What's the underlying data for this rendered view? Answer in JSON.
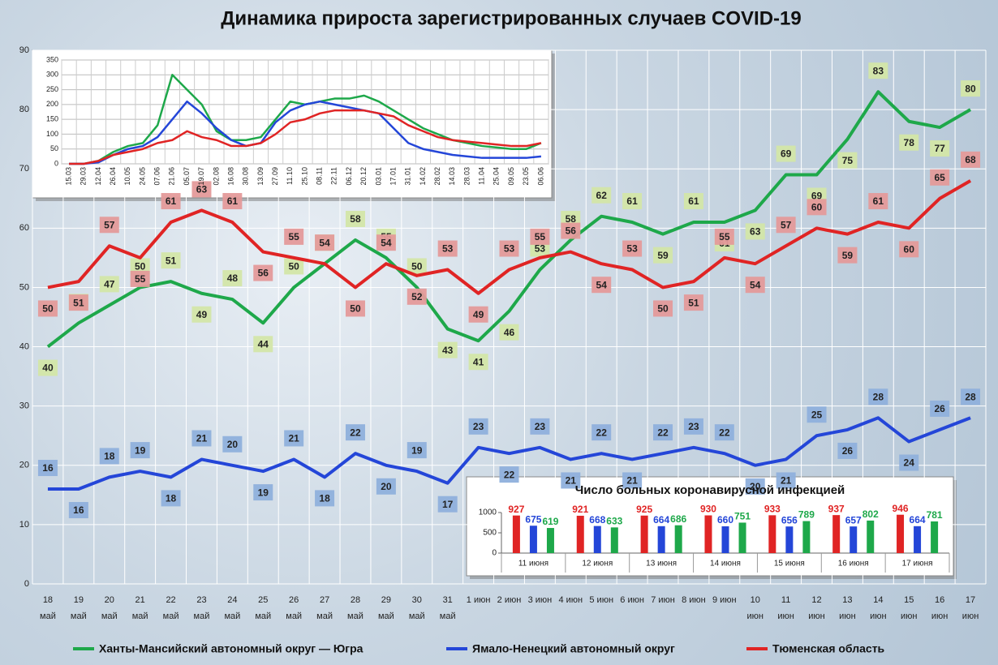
{
  "chart_data": [
    {
      "type": "line",
      "title": "Динамика прироста зарегистрированных случаев COVID-19",
      "categories": [
        "18 май",
        "19 май",
        "20 май",
        "21 май",
        "22 май",
        "23 май",
        "24 май",
        "25 май",
        "26 май",
        "27 май",
        "28 май",
        "29 май",
        "30 май",
        "31 май",
        "1 июн",
        "2 июн",
        "3 июн",
        "4 июн",
        "5 июн",
        "6 июн",
        "7 июн",
        "8 июн",
        "9 июн",
        "10 июн",
        "11 июн",
        "12 июн",
        "13 июн",
        "14 июн",
        "15 июн",
        "16 июн",
        "17 июн"
      ],
      "series": [
        {
          "name": "Ханты-Мансийский автономный округ — Югра",
          "color": "#1ea84a",
          "label_color": "#d3e6a8",
          "values": [
            40,
            44,
            47,
            50,
            51,
            49,
            48,
            44,
            50,
            54,
            58,
            55,
            50,
            43,
            41,
            46,
            53,
            58,
            62,
            61,
            59,
            61,
            61,
            63,
            69,
            69,
            75,
            83,
            78,
            77,
            80
          ]
        },
        {
          "name": "Ямало-Ненецкий автономный округ",
          "color": "#2446d8",
          "label_color": "#8fb0dc",
          "values": [
            16,
            16,
            18,
            19,
            18,
            21,
            20,
            19,
            21,
            18,
            22,
            20,
            19,
            17,
            23,
            22,
            23,
            21,
            22,
            21,
            22,
            23,
            22,
            20,
            21,
            25,
            26,
            28,
            24,
            26,
            28
          ]
        },
        {
          "name": "Тюменская область",
          "color": "#e02424",
          "label_color": "#e49a9a",
          "values": [
            50,
            51,
            57,
            55,
            61,
            63,
            61,
            56,
            55,
            54,
            50,
            54,
            52,
            53,
            49,
            53,
            55,
            56,
            54,
            53,
            50,
            51,
            55,
            54,
            57,
            60,
            59,
            61,
            60,
            65,
            68
          ]
        }
      ],
      "ylim": [
        0,
        90
      ],
      "yticks": [
        0,
        10,
        20,
        30,
        40,
        50,
        60,
        70,
        80,
        90
      ],
      "grid": true
    },
    {
      "type": "line",
      "categories": [
        "15.03",
        "29.03",
        "12.04",
        "26.04",
        "10.05",
        "24.05",
        "07.06",
        "21.06",
        "05.07",
        "19.07",
        "02.08",
        "16.08",
        "30.08",
        "13.09",
        "27.09",
        "11.10",
        "25.10",
        "08.11",
        "22.11",
        "06.12",
        "20.12",
        "03.01",
        "17.01",
        "31.01",
        "14.02",
        "28.02",
        "14.03",
        "28.03",
        "11.04",
        "25.04",
        "09.05",
        "23.05",
        "06.06"
      ],
      "series": [
        {
          "color": "#1ea84a",
          "values": [
            0,
            0,
            10,
            40,
            60,
            70,
            130,
            300,
            250,
            200,
            110,
            80,
            80,
            90,
            150,
            210,
            200,
            210,
            220,
            220,
            230,
            210,
            180,
            150,
            120,
            100,
            80,
            70,
            60,
            55,
            50,
            50,
            70
          ]
        },
        {
          "color": "#2446d8",
          "values": [
            0,
            0,
            5,
            30,
            50,
            60,
            90,
            150,
            210,
            170,
            120,
            80,
            60,
            70,
            140,
            180,
            200,
            210,
            200,
            190,
            180,
            170,
            120,
            70,
            50,
            40,
            30,
            25,
            20,
            20,
            20,
            20,
            25
          ]
        },
        {
          "color": "#e02424",
          "values": [
            0,
            0,
            10,
            30,
            40,
            50,
            70,
            80,
            110,
            90,
            80,
            60,
            60,
            70,
            100,
            140,
            150,
            170,
            180,
            180,
            180,
            170,
            160,
            130,
            110,
            90,
            80,
            75,
            70,
            65,
            60,
            60,
            70
          ]
        }
      ],
      "ylim": [
        0,
        350
      ],
      "yticks": [
        0,
        50,
        100,
        150,
        200,
        250,
        300,
        350
      ],
      "grid": true
    },
    {
      "type": "bar",
      "title": "Число больных коронавирусной инфекцией",
      "categories": [
        "11 июня",
        "12 июня",
        "13 июня",
        "14 июня",
        "15 июня",
        "16 июня",
        "17 июня"
      ],
      "series": [
        {
          "color": "#e02424",
          "values": [
            927,
            921,
            925,
            930,
            933,
            937,
            946
          ]
        },
        {
          "color": "#2446d8",
          "values": [
            675,
            668,
            664,
            660,
            656,
            657,
            664
          ]
        },
        {
          "color": "#1ea84a",
          "values": [
            619,
            633,
            686,
            751,
            789,
            802,
            781
          ]
        }
      ],
      "ylim": [
        0,
        1000
      ],
      "yticks": [
        0,
        500,
        1000
      ],
      "grid": false
    }
  ]
}
